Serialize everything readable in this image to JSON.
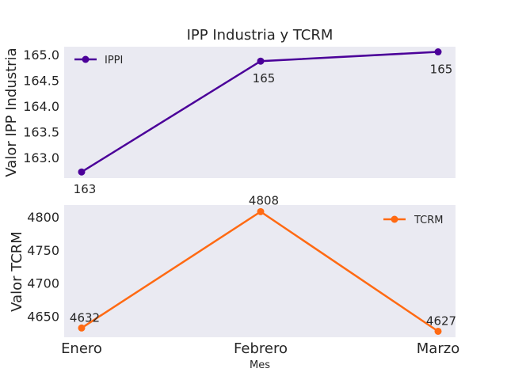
{
  "chart_data": [
    {
      "type": "line",
      "title": "IPP Industria y TCRM",
      "xlabel": "",
      "ylabel": "Valor IPP Industria",
      "categories": [
        "Enero",
        "Febrero",
        "Marzo"
      ],
      "ylim": [
        162.6,
        165.15
      ],
      "yticks": [
        "163.0",
        "163.5",
        "164.0",
        "164.5",
        "165.0"
      ],
      "grid": false,
      "legend_position": "upper left",
      "series": [
        {
          "name": "IPPI",
          "color": "#4b0099",
          "values": [
            162.72,
            164.87,
            165.05
          ],
          "data_labels": [
            "163",
            "165",
            "165"
          ]
        }
      ]
    },
    {
      "type": "line",
      "title": "",
      "xlabel": "Mes",
      "ylabel": "Valor TCRM",
      "categories": [
        "Enero",
        "Febrero",
        "Marzo"
      ],
      "ylim": [
        4618,
        4818
      ],
      "yticks": [
        "4650",
        "4700",
        "4750",
        "4800"
      ],
      "grid": false,
      "legend_position": "upper right",
      "series": [
        {
          "name": "TCRM",
          "color": "#ff6a13",
          "values": [
            4632,
            4808,
            4627
          ],
          "data_labels": [
            "4632",
            "4808",
            "4627"
          ]
        }
      ]
    }
  ]
}
